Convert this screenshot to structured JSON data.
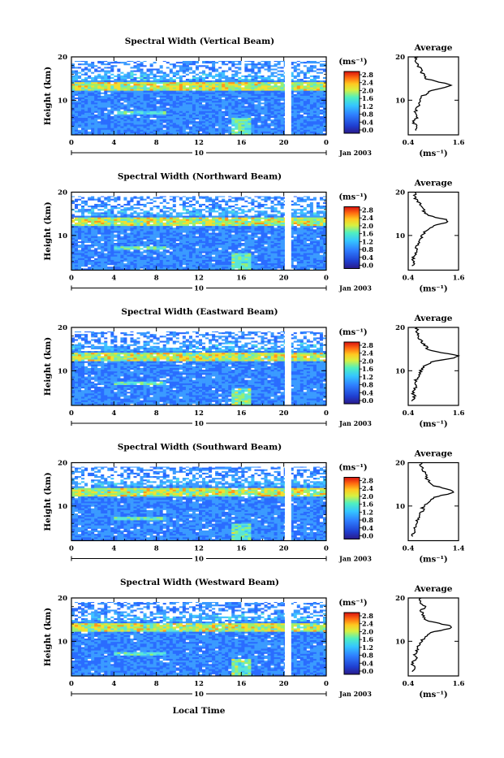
{
  "figure": {
    "x_axis_label": "Local Time",
    "date_label": "Jan 2003",
    "day_label": "10",
    "colorbar_unit": "(ms⁻¹)",
    "avg_title": "Average",
    "avg_unit": "(ms⁻¹)",
    "y_axis_label": "Height (km)"
  },
  "colors": {
    "low": "#1f3fa8",
    "mid": "#3fb6ff",
    "high": "#e8252a",
    "gap": "#ffffff"
  },
  "chart_data": [
    {
      "type": "heatmap",
      "title": "Spectral Width (Vertical Beam)",
      "x_ticks": [
        "0",
        "4",
        "8",
        "12",
        "16",
        "20",
        "0"
      ],
      "xlim": [
        0,
        24
      ],
      "y_ticks": [
        "10",
        "20"
      ],
      "ylim": [
        2,
        20
      ],
      "colorbar_ticks": [
        "2.8",
        "2.4",
        "2.0",
        "1.6",
        "1.2",
        "0.8",
        "0.4",
        "0.0"
      ],
      "colorbar_range": [
        0.0,
        3.0
      ],
      "data_gap_hours": [
        20.1,
        20.7
      ],
      "enhanced_layer_km": [
        12.5,
        14.5
      ],
      "average_profile": {
        "x_ticks": [
          "0.4",
          "1.6"
        ],
        "xlim": [
          0.4,
          1.6
        ],
        "ylim": [
          2,
          20
        ],
        "y_ticks": [
          "10",
          "20"
        ],
        "height_km": [
          3,
          4,
          5,
          6,
          7,
          8,
          9,
          10,
          11,
          12,
          12.5,
          13,
          13.5,
          14,
          14.5,
          15,
          16,
          17,
          18,
          19
        ],
        "width_ms": [
          0.55,
          0.6,
          0.5,
          0.62,
          0.55,
          0.6,
          0.65,
          0.7,
          0.75,
          0.9,
          1.05,
          1.3,
          1.45,
          1.25,
          1.0,
          0.8,
          0.75,
          0.7,
          0.65,
          0.6
        ]
      }
    },
    {
      "type": "heatmap",
      "title": "Spectral Width (Northward Beam)",
      "x_ticks": [
        "0",
        "4",
        "8",
        "12",
        "16",
        "20",
        "0"
      ],
      "xlim": [
        0,
        24
      ],
      "y_ticks": [
        "10",
        "20"
      ],
      "ylim": [
        2,
        20
      ],
      "colorbar_ticks": [
        "2.8",
        "2.4",
        "2.0",
        "1.6",
        "1.2",
        "0.8",
        "0.4",
        "0.0"
      ],
      "colorbar_range": [
        0.0,
        3.0
      ],
      "data_gap_hours": [
        20.1,
        20.7
      ],
      "enhanced_layer_km": [
        12.5,
        14.5
      ],
      "average_profile": {
        "x_ticks": [
          "0.4",
          "1.6"
        ],
        "xlim": [
          0.4,
          1.6
        ],
        "ylim": [
          2,
          20
        ],
        "y_ticks": [
          "10",
          "20"
        ],
        "height_km": [
          3,
          4,
          5,
          6,
          7,
          8,
          9,
          10,
          11,
          12,
          12.5,
          13,
          13.5,
          14,
          14.5,
          15,
          16,
          17,
          18,
          19
        ],
        "width_ms": [
          0.5,
          0.55,
          0.5,
          0.6,
          0.58,
          0.65,
          0.7,
          0.72,
          0.8,
          0.95,
          1.1,
          1.3,
          1.35,
          1.15,
          0.95,
          0.8,
          0.75,
          0.7,
          0.6,
          0.55
        ]
      }
    },
    {
      "type": "heatmap",
      "title": "Spectral Width (Eastward Beam)",
      "x_ticks": [
        "0",
        "4",
        "8",
        "12",
        "16",
        "20",
        "0"
      ],
      "xlim": [
        0,
        24
      ],
      "y_ticks": [
        "10",
        "20"
      ],
      "ylim": [
        2,
        20
      ],
      "colorbar_ticks": [
        "2.8",
        "2.4",
        "2.0",
        "1.6",
        "1.2",
        "0.8",
        "0.4",
        "0.0"
      ],
      "colorbar_range": [
        0.0,
        3.0
      ],
      "data_gap_hours": [
        20.1,
        20.7
      ],
      "enhanced_layer_km": [
        12.5,
        14.5
      ],
      "average_profile": {
        "x_ticks": [
          "0.4",
          "1.6"
        ],
        "xlim": [
          0.4,
          1.6
        ],
        "ylim": [
          2,
          20
        ],
        "y_ticks": [
          "10",
          "20"
        ],
        "height_km": [
          3,
          4,
          5,
          6,
          7,
          8,
          9,
          10,
          11,
          12,
          12.5,
          13,
          13.5,
          14,
          14.5,
          15,
          16,
          17,
          18,
          19
        ],
        "width_ms": [
          0.5,
          0.55,
          0.5,
          0.58,
          0.55,
          0.6,
          0.65,
          0.7,
          0.78,
          0.95,
          1.2,
          1.5,
          1.6,
          1.3,
          1.0,
          0.85,
          0.8,
          0.7,
          0.65,
          0.6
        ]
      }
    },
    {
      "type": "heatmap",
      "title": "Spectral Width (Southward Beam)",
      "x_ticks": [
        "0",
        "4",
        "8",
        "12",
        "16",
        "20",
        "0"
      ],
      "xlim": [
        0,
        24
      ],
      "y_ticks": [
        "10",
        "20"
      ],
      "ylim": [
        2,
        20
      ],
      "colorbar_ticks": [
        "2.8",
        "2.4",
        "2.0",
        "1.6",
        "1.2",
        "0.8",
        "0.4",
        "0.0"
      ],
      "colorbar_range": [
        0.0,
        3.0
      ],
      "data_gap_hours": [
        20.1,
        20.7
      ],
      "enhanced_layer_km": [
        12.5,
        14.5
      ],
      "average_profile": {
        "x_ticks": [
          "0.4",
          "1.4"
        ],
        "xlim": [
          0.4,
          1.4
        ],
        "ylim": [
          2,
          20
        ],
        "y_ticks": [
          "10",
          "20"
        ],
        "height_km": [
          3,
          4,
          5,
          6,
          7,
          8,
          9,
          10,
          11,
          12,
          12.5,
          13,
          13.5,
          14,
          14.5,
          15,
          16,
          17,
          18,
          19
        ],
        "width_ms": [
          0.5,
          0.52,
          0.55,
          0.6,
          0.58,
          0.62,
          0.68,
          0.7,
          0.8,
          0.95,
          1.1,
          1.25,
          1.3,
          1.15,
          0.95,
          0.85,
          0.8,
          0.75,
          0.7,
          0.65
        ]
      }
    },
    {
      "type": "heatmap",
      "title": "Spectral Width (Westward Beam)",
      "x_ticks": [
        "0",
        "4",
        "8",
        "12",
        "16",
        "20",
        "0"
      ],
      "xlim": [
        0,
        24
      ],
      "y_ticks": [
        "10",
        "20"
      ],
      "ylim": [
        2,
        20
      ],
      "colorbar_ticks": [
        "2.8",
        "2.4",
        "2.0",
        "1.6",
        "1.2",
        "0.8",
        "0.4",
        "0.0"
      ],
      "colorbar_range": [
        0.0,
        3.0
      ],
      "data_gap_hours": [
        20.1,
        20.7
      ],
      "enhanced_layer_km": [
        12.5,
        14.5
      ],
      "average_profile": {
        "x_ticks": [
          "0.4",
          "1.6"
        ],
        "xlim": [
          0.4,
          1.6
        ],
        "ylim": [
          2,
          20
        ],
        "y_ticks": [
          "10",
          "20"
        ],
        "height_km": [
          3,
          4,
          5,
          6,
          7,
          8,
          9,
          10,
          11,
          12,
          12.5,
          13,
          13.5,
          14,
          14.5,
          15,
          16,
          17,
          18,
          19
        ],
        "width_ms": [
          0.5,
          0.55,
          0.5,
          0.6,
          0.55,
          0.6,
          0.65,
          0.7,
          0.8,
          0.95,
          1.15,
          1.4,
          1.45,
          1.2,
          0.95,
          0.8,
          0.75,
          0.7,
          0.8,
          0.7
        ]
      }
    }
  ]
}
